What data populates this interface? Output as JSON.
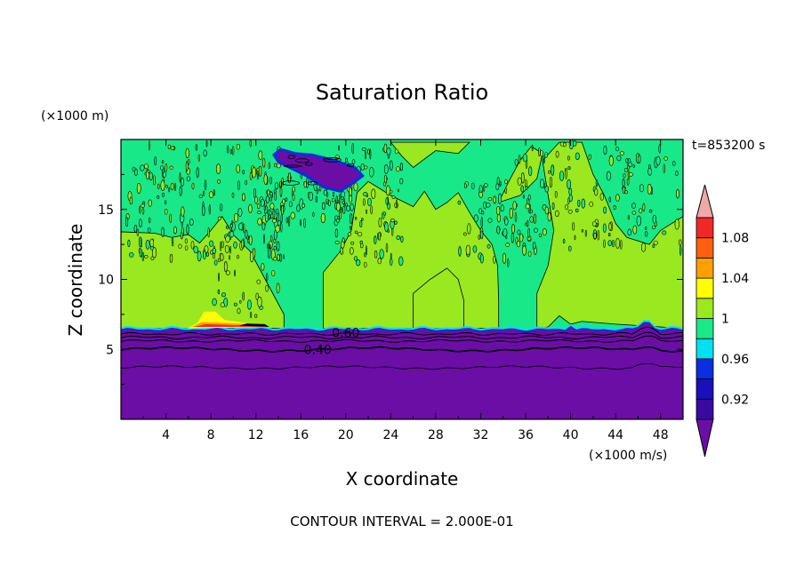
{
  "chart_data": {
    "type": "contour",
    "title": "Saturation Ratio",
    "xlabel": "X coordinate",
    "ylabel": "Z coordinate",
    "x_unit": "(×1000 m/s)",
    "y_unit": "(×1000 m)",
    "time_label": "t=853200 s",
    "footer": "CONTOUR INTERVAL = 2.000E-01",
    "xlim": [
      0,
      50
    ],
    "ylim": [
      0,
      20
    ],
    "x_ticks": [
      4,
      8,
      12,
      16,
      20,
      24,
      28,
      32,
      36,
      40,
      44,
      48
    ],
    "y_ticks": [
      5,
      10,
      15
    ],
    "colorbar": {
      "labels": [
        "0.92",
        "0.96",
        "1",
        "1.04",
        "1.08"
      ],
      "label_values": [
        0.92,
        0.96,
        1.0,
        1.04,
        1.08
      ],
      "levels": [
        0.9,
        0.92,
        0.94,
        0.96,
        0.98,
        1.0,
        1.02,
        1.04,
        1.06,
        1.08,
        1.1
      ],
      "colors": [
        "#3a0aa0",
        "#1a10b8",
        "#0a2ee0",
        "#00e0f0",
        "#18e888",
        "#99e820",
        "#ffff00",
        "#ffa000",
        "#ff6010",
        "#f02828"
      ],
      "under_color": "#6a0ea6",
      "over_color": "#f0a8a8"
    },
    "contour_labels": [
      {
        "text": "0.60",
        "x": 20,
        "y": 6.2
      },
      {
        "text": "0.40",
        "x": 17.5,
        "y": 5.0
      }
    ],
    "regions": [
      {
        "name": "dry lower layer",
        "value_range": "< 0.9",
        "z_range": [
          0,
          6.5
        ]
      },
      {
        "name": "upper layer",
        "value_range": "0.98 - 1.02",
        "z_range": [
          6.5,
          20
        ]
      },
      {
        "name": "dry patch near top",
        "value_range": "< 0.9",
        "x_range": [
          14,
          21
        ],
        "z_range": [
          16.5,
          19.5
        ]
      }
    ]
  }
}
